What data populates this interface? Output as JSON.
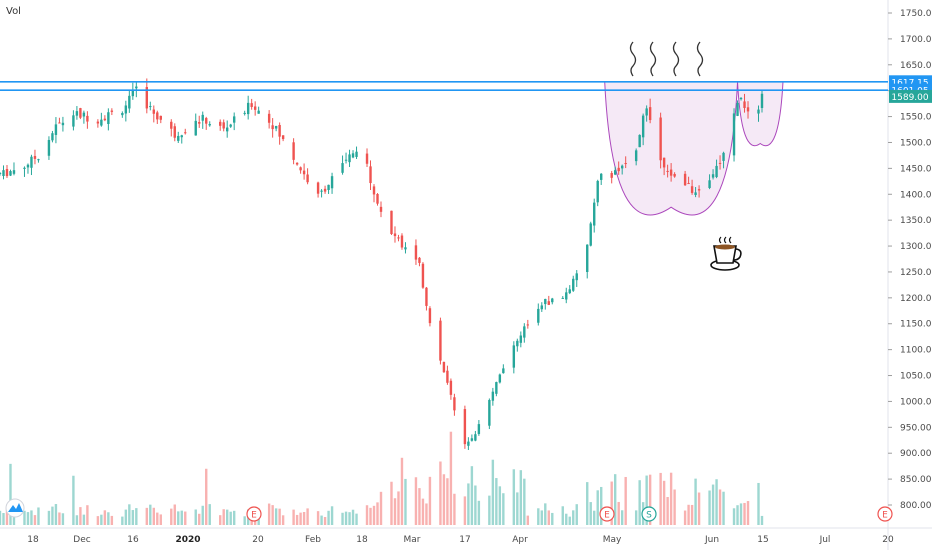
{
  "indicator_label": "Vol",
  "colors": {
    "up": "#26a69a",
    "down": "#ef5350",
    "hline": "#2196f3",
    "cup": "#ab47bc",
    "cup_fill": "#f3e5f5",
    "price_badge": "#26a69a",
    "level_badge": "#2196f3",
    "earnings": "#ef5350",
    "split": "#26a69a"
  },
  "chart_data": {
    "type": "candlestick",
    "y_axis": {
      "ticks": [
        800,
        850,
        900,
        950,
        1000,
        1050,
        1100,
        1150,
        1200,
        1250,
        1300,
        1350,
        1400,
        1450,
        1500,
        1550,
        1600,
        1650,
        1700,
        1750
      ],
      "tick_labels": [
        "800.00",
        "850.00",
        "900.00",
        "950.00",
        "1000.00",
        "1050.00",
        "1100.00",
        "1150.00",
        "1200.00",
        "1250.00",
        "1300.00",
        "1350.00",
        "1400.00",
        "1450.00",
        "1500.00",
        "1550.00",
        "1600.00",
        "1650.00",
        "1700.00",
        "1750.00"
      ],
      "range": [
        775,
        1770
      ]
    },
    "x_axis": {
      "labels": [
        "18",
        "Dec",
        "16",
        "2020",
        "20",
        "Feb",
        "18",
        "Mar",
        "17",
        "Apr",
        "May",
        "Jun",
        "15",
        "Jul",
        "20"
      ],
      "bold": [
        "2020"
      ]
    },
    "horizontal_levels": [
      {
        "value": 1617.15,
        "label": "1617.15"
      },
      {
        "value": 1601.05,
        "label": "1601.05"
      }
    ],
    "last_price": {
      "value": 1589.0,
      "label": "1589.00"
    },
    "price_path": [
      [
        "2019-11-12",
        1440
      ],
      [
        "2019-11-18",
        1455
      ],
      [
        "2019-11-22",
        1475
      ],
      [
        "2019-11-27",
        1530
      ],
      [
        "2019-12-02",
        1555
      ],
      [
        "2019-12-09",
        1545
      ],
      [
        "2019-12-16",
        1565
      ],
      [
        "2019-12-20",
        1600
      ],
      [
        "2019-12-24",
        1565
      ],
      [
        "2019-12-31",
        1515
      ],
      [
        "2020-01-08",
        1545
      ],
      [
        "2020-01-14",
        1525
      ],
      [
        "2020-01-20",
        1560
      ],
      [
        "2020-01-22",
        1575
      ],
      [
        "2020-01-28",
        1535
      ],
      [
        "2020-02-04",
        1460
      ],
      [
        "2020-02-10",
        1395
      ],
      [
        "2020-02-14",
        1430
      ],
      [
        "2020-02-20",
        1480
      ],
      [
        "2020-02-24",
        1455
      ],
      [
        "2020-02-27",
        1380
      ],
      [
        "2020-03-02",
        1320
      ],
      [
        "2020-03-06",
        1300
      ],
      [
        "2020-03-10",
        1260
      ],
      [
        "2020-03-13",
        1150
      ],
      [
        "2020-03-16",
        1080
      ],
      [
        "2020-03-19",
        1010
      ],
      [
        "2020-03-23",
        920
      ],
      [
        "2020-03-26",
        940
      ],
      [
        "2020-03-31",
        1020
      ],
      [
        "2020-04-03",
        1060
      ],
      [
        "2020-04-08",
        1130
      ],
      [
        "2020-04-14",
        1190
      ],
      [
        "2020-04-20",
        1200
      ],
      [
        "2020-04-24",
        1240
      ],
      [
        "2020-04-27",
        1300
      ],
      [
        "2020-04-30",
        1430
      ],
      [
        "2020-05-05",
        1440
      ],
      [
        "2020-05-11",
        1480
      ],
      [
        "2020-05-14",
        1575
      ],
      [
        "2020-05-18",
        1470
      ],
      [
        "2020-05-22",
        1430
      ],
      [
        "2020-05-27",
        1410
      ],
      [
        "2020-06-01",
        1420
      ],
      [
        "2020-06-05",
        1480
      ],
      [
        "2020-06-08",
        1550
      ],
      [
        "2020-06-10",
        1590
      ],
      [
        "2020-06-12",
        1555
      ],
      [
        "2020-06-14",
        1520
      ],
      [
        "2020-06-16",
        1589
      ]
    ],
    "volume_relative_max": 1.0
  },
  "annotations": {
    "cup_handle_label": "cup and handle",
    "cup_icon": "coffee-cup-icon",
    "steam_icon": "steam-squiggle-icon",
    "earnings_marker": "E",
    "split_marker": "S",
    "logo_icon": "tradingview-logo-icon"
  }
}
